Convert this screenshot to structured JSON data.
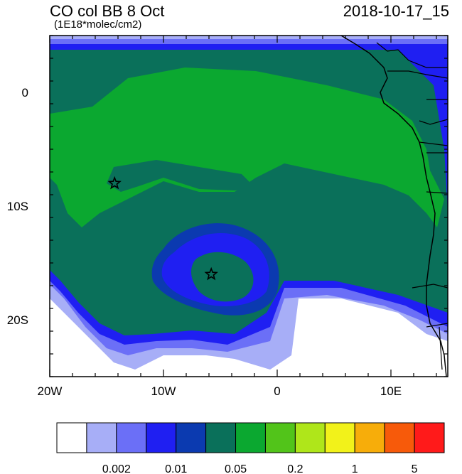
{
  "title": "CO col BB 8 Oct",
  "subtitle": "(1E18*molec/cm2)",
  "timestamp": "2018-10-17_15",
  "map": {
    "lon_range": [
      -20,
      15
    ],
    "lat_range": [
      -25,
      5
    ],
    "x_ticks": [
      {
        "label": "20W",
        "lon": -20
      },
      {
        "label": "10W",
        "lon": -10
      },
      {
        "label": "0",
        "lon": 0
      },
      {
        "label": "10E",
        "lon": 10
      }
    ],
    "y_ticks": [
      {
        "label": "0",
        "lat": 0
      },
      {
        "label": "10S",
        "lat": -10
      },
      {
        "label": "20S",
        "lat": -20
      }
    ],
    "markers": [
      {
        "name": "star",
        "lon": -14.3,
        "lat": -8.0
      },
      {
        "name": "star",
        "lon": -5.8,
        "lat": -16.0
      }
    ]
  },
  "colorbar": {
    "colors": [
      "#ffffff",
      "#a7aef7",
      "#6b6ff7",
      "#1f1ff2",
      "#0b3ab0",
      "#0a705a",
      "#0ba830",
      "#52c41a",
      "#afe61a",
      "#f2f21a",
      "#f7ad0a",
      "#f75a0a",
      "#ff1a1a"
    ],
    "labels": [
      {
        "text": "0.002",
        "after_box": 2
      },
      {
        "text": "0.01",
        "after_box": 4
      },
      {
        "text": "0.05",
        "after_box": 6
      },
      {
        "text": "0.2",
        "after_box": 8
      },
      {
        "text": "1",
        "after_box": 10
      },
      {
        "text": "5",
        "after_box": 12
      }
    ]
  }
}
